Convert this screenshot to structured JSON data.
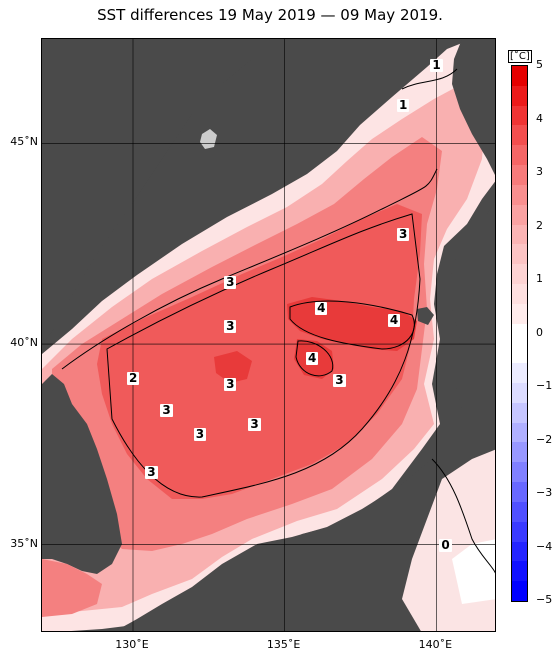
{
  "title": "SST differences 19 May 2019 — 09 May 2019.",
  "lat_labels": [
    {
      "text": "45˚N",
      "lat": 45
    },
    {
      "text": "40˚N",
      "lat": 40
    },
    {
      "text": "35˚N",
      "lat": 35
    }
  ],
  "lon_labels": [
    {
      "text": "130˚E",
      "lon": 130
    },
    {
      "text": "135˚E",
      "lon": 135
    },
    {
      "text": "140˚E",
      "lon": 140
    }
  ],
  "map_extent": {
    "lon_min": 127,
    "lon_max": 142,
    "lat_min": 32.8,
    "lat_max": 47.6
  },
  "contour_labels": [
    {
      "text": "1",
      "lon": 140.0,
      "lat": 46.9
    },
    {
      "text": "1",
      "lon": 138.9,
      "lat": 45.9
    },
    {
      "text": "3",
      "lon": 138.9,
      "lat": 42.7
    },
    {
      "text": "3",
      "lon": 133.2,
      "lat": 41.5
    },
    {
      "text": "4",
      "lon": 136.2,
      "lat": 40.85
    },
    {
      "text": "4",
      "lon": 138.6,
      "lat": 40.55
    },
    {
      "text": "3",
      "lon": 133.2,
      "lat": 40.4
    },
    {
      "text": "4",
      "lon": 135.9,
      "lat": 39.6
    },
    {
      "text": "2",
      "lon": 130.0,
      "lat": 39.1
    },
    {
      "text": "3",
      "lon": 133.2,
      "lat": 38.95
    },
    {
      "text": "3",
      "lon": 136.8,
      "lat": 39.05
    },
    {
      "text": "3",
      "lon": 131.1,
      "lat": 38.3
    },
    {
      "text": "3",
      "lon": 134.0,
      "lat": 37.95
    },
    {
      "text": "3",
      "lon": 132.2,
      "lat": 37.7
    },
    {
      "text": "3",
      "lon": 130.6,
      "lat": 36.75
    },
    {
      "text": "0",
      "lon": 140.3,
      "lat": 34.95
    }
  ],
  "colorbar": {
    "unit": "[˚C]",
    "ticks": [
      "5",
      "4",
      "3",
      "2",
      "1",
      "0",
      "−1",
      "−2",
      "−3",
      "−4",
      "−5"
    ],
    "min": -5,
    "max": 5,
    "colors": [
      "#e50000",
      "#ec1a1a",
      "#f03434",
      "#f34e4e",
      "#f56666",
      "#f77b7b",
      "#f98f8f",
      "#faa2a2",
      "#fbb4b4",
      "#fcc4c4",
      "#fdd3d3",
      "#fee0e0",
      "#ffecec",
      "#ffffff",
      "#ffffff",
      "#ececff",
      "#dcdcff",
      "#c6c6ff",
      "#b0b0ff",
      "#9898ff",
      "#8080ff",
      "#6868ff",
      "#5050ff",
      "#3a3aff",
      "#2424ff",
      "#1010ff",
      "#0000ff"
    ]
  },
  "map_colors": {
    "land": "#4a4a4a",
    "sea_pale": "#fde4e4",
    "sea_light": "#f9b0b0",
    "sea_mid": "#f48080",
    "sea_strong": "#f05a5a",
    "sea_deep": "#e83a3a",
    "coastline": "#000000"
  }
}
